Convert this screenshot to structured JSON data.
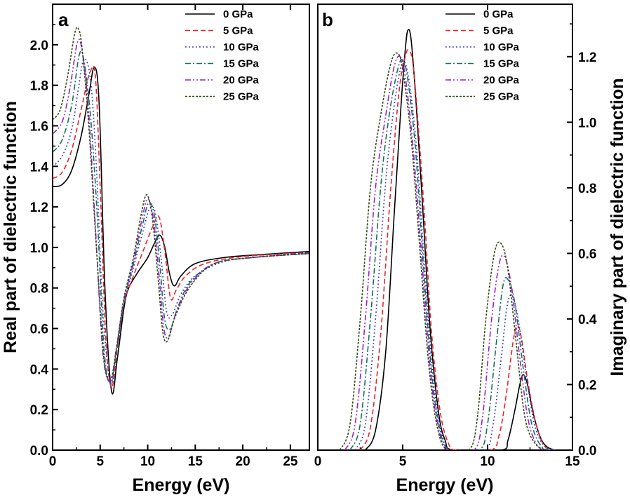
{
  "chart_data": [
    {
      "panel_label": "a",
      "type": "line",
      "xlabel": "Energy (eV)",
      "ylabel": "Real part of dielectric function",
      "xlim": [
        0,
        27
      ],
      "ylim": [
        0,
        2.2
      ],
      "xticks": [
        0,
        5,
        10,
        15,
        20,
        25
      ],
      "yticks": [
        0.0,
        0.2,
        0.4,
        0.6,
        0.8,
        1.0,
        1.2,
        1.4,
        1.6,
        1.8,
        2.0
      ],
      "tick_labels_x": [
        "0",
        "5",
        "10",
        "15",
        "20",
        "25"
      ],
      "tick_labels_y": [
        "0.0",
        "0.2",
        "0.4",
        "0.6",
        "0.8",
        "1.0",
        "1.2",
        "1.4",
        "1.6",
        "1.8",
        "2.0"
      ],
      "legend_position": "top-right",
      "grid": false,
      "series": [
        {
          "name": "0 GPa",
          "color": "#000000",
          "dash": "solid",
          "x": [
            0,
            1,
            2,
            3,
            3.8,
            4.4,
            4.9,
            5.5,
            6.2,
            6.8,
            7.5,
            8,
            9,
            10,
            10.8,
            11.3,
            11.8,
            12.3,
            12.8,
            13.5,
            15,
            18,
            22,
            27
          ],
          "y": [
            1.3,
            1.31,
            1.38,
            1.55,
            1.75,
            1.89,
            1.7,
            0.8,
            0.29,
            0.45,
            0.7,
            0.8,
            0.88,
            0.95,
            1.03,
            1.06,
            1.0,
            0.87,
            0.81,
            0.86,
            0.92,
            0.95,
            0.965,
            0.98
          ]
        },
        {
          "name": "5 GPa",
          "color": "#e8242b",
          "dash": "dashed",
          "x": [
            0,
            1,
            2,
            3,
            3.9,
            4.5,
            5,
            5.6,
            6.2,
            6.8,
            7.5,
            8.5,
            9.5,
            10.5,
            11.2,
            11.8,
            12.4,
            13,
            14,
            16,
            20,
            27
          ],
          "y": [
            1.34,
            1.37,
            1.48,
            1.68,
            1.86,
            1.84,
            1.3,
            0.55,
            0.31,
            0.5,
            0.72,
            0.86,
            0.98,
            1.1,
            1.15,
            0.98,
            0.75,
            0.79,
            0.86,
            0.92,
            0.955,
            0.975
          ]
        },
        {
          "name": "10 GPa",
          "color": "#2b2fd0",
          "dash": "dotted",
          "x": [
            0,
            1,
            2,
            2.7,
            3.3,
            4,
            4.6,
            5.3,
            6.1,
            6.7,
            7.5,
            8.5,
            9.5,
            10.2,
            10.8,
            11.4,
            12,
            12.6,
            13.5,
            15,
            18,
            22,
            27
          ],
          "y": [
            1.4,
            1.45,
            1.58,
            1.78,
            1.93,
            1.82,
            1.4,
            0.68,
            0.33,
            0.48,
            0.72,
            0.9,
            1.08,
            1.19,
            1.17,
            0.95,
            0.68,
            0.67,
            0.77,
            0.86,
            0.93,
            0.955,
            0.975
          ]
        },
        {
          "name": "15 GPa",
          "color": "#17705a",
          "dash": "dashdot",
          "x": [
            0,
            1,
            2,
            2.8,
            3.3,
            4,
            4.7,
            5.4,
            6.1,
            6.7,
            7.5,
            8.5,
            9.5,
            10.1,
            10.7,
            11.3,
            11.8,
            12.4,
            13.2,
            14.5,
            17,
            21,
            27
          ],
          "y": [
            1.47,
            1.53,
            1.7,
            1.95,
            1.92,
            1.64,
            1.15,
            0.5,
            0.33,
            0.48,
            0.73,
            0.92,
            1.12,
            1.22,
            1.16,
            0.9,
            0.64,
            0.6,
            0.71,
            0.83,
            0.92,
            0.95,
            0.97
          ]
        },
        {
          "name": "20 GPa",
          "color": "#9b1dd6",
          "dash": "dashdotdot",
          "x": [
            0,
            1,
            1.8,
            2.6,
            3.1,
            3.8,
            4.5,
            5.3,
            6.1,
            6.7,
            7.5,
            8.5,
            9.4,
            10,
            10.6,
            11.2,
            11.7,
            12.2,
            13,
            14.5,
            17,
            21,
            27
          ],
          "y": [
            1.56,
            1.62,
            1.78,
            2.01,
            1.97,
            1.66,
            1.1,
            0.47,
            0.34,
            0.5,
            0.74,
            0.93,
            1.14,
            1.24,
            1.14,
            0.86,
            0.6,
            0.56,
            0.68,
            0.82,
            0.92,
            0.95,
            0.97
          ]
        },
        {
          "name": "25 GPa",
          "color": "#2f4a12",
          "dash": "shortdash",
          "x": [
            0,
            0.8,
            1.6,
            2.3,
            2.7,
            3.1,
            3.8,
            4.6,
            5.4,
            6.1,
            6.7,
            7.5,
            8.5,
            9.3,
            9.9,
            10.5,
            11.1,
            11.6,
            12.1,
            12.9,
            14.5,
            17,
            21,
            27
          ],
          "y": [
            1.63,
            1.68,
            1.85,
            2.05,
            2.08,
            1.98,
            1.6,
            1.0,
            0.45,
            0.35,
            0.5,
            0.75,
            0.95,
            1.16,
            1.26,
            1.14,
            0.84,
            0.58,
            0.54,
            0.66,
            0.81,
            0.92,
            0.95,
            0.97
          ]
        }
      ]
    },
    {
      "panel_label": "b",
      "type": "line",
      "xlabel": "Energy (eV)",
      "ylabel": "Imaginary part of dielectric function",
      "xlim": [
        0,
        15
      ],
      "ylim": [
        0,
        1.36
      ],
      "xticks": [
        0,
        5,
        10,
        15
      ],
      "yticks": [
        0.0,
        0.2,
        0.4,
        0.6,
        0.8,
        1.0,
        1.2
      ],
      "tick_labels_x": [
        "0",
        "5",
        "10",
        "15"
      ],
      "tick_labels_y": [
        "0.0",
        "0.2",
        "0.4",
        "0.6",
        "0.8",
        "1.0",
        "1.2"
      ],
      "y_axis_side": "right",
      "legend_position": "top-right",
      "grid": false,
      "series": [
        {
          "name": "0 GPa",
          "color": "#000000",
          "dash": "solid",
          "x": [
            2.8,
            3.4,
            4,
            4.5,
            4.9,
            5.15,
            5.3,
            5.5,
            5.8,
            6.2,
            6.6,
            7.1,
            7.5,
            8.0,
            10.8,
            11.2,
            11.6,
            11.9,
            12.1,
            12.35,
            12.7,
            13.1,
            13.5,
            14
          ],
          "y": [
            0.0,
            0.06,
            0.3,
            0.72,
            1.05,
            1.22,
            1.28,
            1.25,
            1.05,
            0.72,
            0.38,
            0.12,
            0.03,
            0.0,
            0.0,
            0.03,
            0.12,
            0.2,
            0.23,
            0.2,
            0.11,
            0.04,
            0.01,
            0.0
          ]
        },
        {
          "name": "5 GPa",
          "color": "#e8242b",
          "dash": "dashed",
          "x": [
            2.5,
            3.1,
            3.7,
            4.3,
            4.8,
            5.15,
            5.35,
            5.6,
            5.9,
            6.3,
            6.7,
            7.2,
            7.7,
            8.2,
            10.2,
            10.7,
            11.1,
            11.5,
            11.75,
            12.0,
            12.4,
            12.9,
            13.4,
            14
          ],
          "y": [
            0.0,
            0.07,
            0.35,
            0.8,
            1.1,
            1.2,
            1.22,
            1.18,
            1.0,
            0.7,
            0.36,
            0.12,
            0.02,
            0.0,
            0.0,
            0.05,
            0.17,
            0.33,
            0.38,
            0.34,
            0.2,
            0.07,
            0.01,
            0.0
          ]
        },
        {
          "name": "10 GPa",
          "color": "#2b2fd0",
          "dash": "dotted",
          "x": [
            2.2,
            2.8,
            3.4,
            4,
            4.5,
            4.9,
            5.15,
            5.45,
            5.85,
            6.3,
            6.8,
            7.3,
            7.9,
            9.8,
            10.3,
            10.8,
            11.15,
            11.45,
            11.8,
            12.3,
            12.8,
            13.4,
            14
          ],
          "y": [
            0.0,
            0.08,
            0.4,
            0.82,
            1.05,
            1.17,
            1.18,
            1.1,
            0.9,
            0.55,
            0.22,
            0.05,
            0.0,
            0.0,
            0.07,
            0.28,
            0.44,
            0.47,
            0.4,
            0.22,
            0.07,
            0.01,
            0.0
          ]
        },
        {
          "name": "15 GPa",
          "color": "#17705a",
          "dash": "dashdot",
          "x": [
            1.9,
            2.5,
            3.1,
            3.7,
            4.2,
            4.7,
            5.0,
            5.3,
            5.75,
            6.2,
            6.7,
            7.2,
            7.8,
            9.5,
            10.0,
            10.5,
            10.9,
            11.2,
            11.6,
            12.1,
            12.6,
            13.2,
            13.9
          ],
          "y": [
            0.0,
            0.08,
            0.4,
            0.8,
            1.02,
            1.16,
            1.19,
            1.13,
            0.92,
            0.58,
            0.24,
            0.06,
            0.0,
            0.0,
            0.08,
            0.32,
            0.5,
            0.52,
            0.45,
            0.25,
            0.08,
            0.01,
            0.0
          ]
        },
        {
          "name": "20 GPa",
          "color": "#9b1dd6",
          "dash": "dashdotdot",
          "x": [
            1.6,
            2.2,
            2.8,
            3.4,
            4.0,
            4.5,
            4.85,
            5.15,
            5.6,
            6.1,
            6.6,
            7.1,
            7.7,
            9.2,
            9.7,
            10.2,
            10.65,
            11.0,
            11.4,
            11.9,
            12.4,
            13.0,
            13.7
          ],
          "y": [
            0.0,
            0.08,
            0.4,
            0.8,
            1.02,
            1.17,
            1.2,
            1.14,
            0.93,
            0.6,
            0.26,
            0.07,
            0.0,
            0.0,
            0.1,
            0.38,
            0.56,
            0.59,
            0.5,
            0.28,
            0.09,
            0.01,
            0.0
          ]
        },
        {
          "name": "25 GPa",
          "color": "#2f4a12",
          "dash": "shortdash",
          "x": [
            1.3,
            1.9,
            2.5,
            3.1,
            3.7,
            4.3,
            4.7,
            5.0,
            5.5,
            6.0,
            6.5,
            7.0,
            7.6,
            8.9,
            9.4,
            9.9,
            10.4,
            10.8,
            11.2,
            11.7,
            12.2,
            12.8,
            13.5
          ],
          "y": [
            0.0,
            0.08,
            0.4,
            0.8,
            1.02,
            1.18,
            1.21,
            1.16,
            0.95,
            0.62,
            0.28,
            0.08,
            0.0,
            0.0,
            0.1,
            0.4,
            0.6,
            0.63,
            0.55,
            0.32,
            0.1,
            0.02,
            0.0
          ]
        }
      ]
    }
  ]
}
